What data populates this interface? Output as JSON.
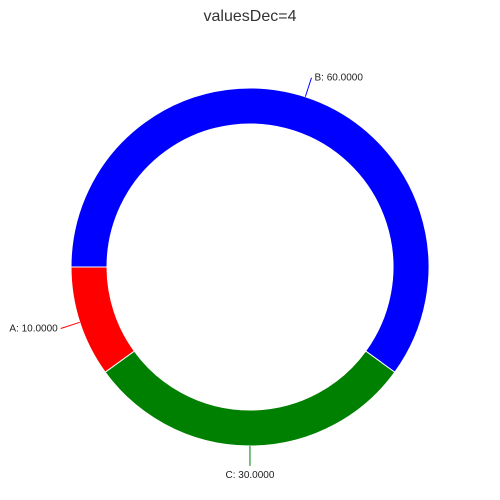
{
  "chart_data": {
    "type": "pie",
    "title": "valuesDec=4",
    "hole": true,
    "categories": [
      "A",
      "B",
      "C"
    ],
    "values": [
      10,
      60,
      30
    ],
    "labels": [
      "A: 10.0000",
      "B: 60.0000",
      "C: 30.0000"
    ],
    "colors": [
      "#ff0000",
      "#0000ff",
      "#008000"
    ],
    "legend": "none",
    "grid": false
  }
}
